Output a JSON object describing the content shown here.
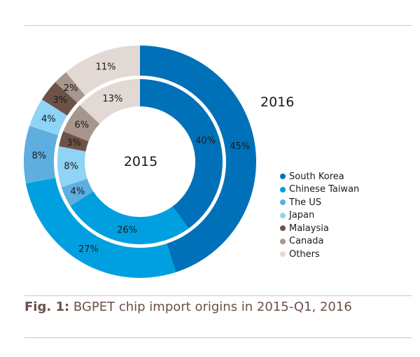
{
  "chart_data": {
    "type": "pie",
    "variant": "nested-donut",
    "title": "BGPET chip import origins in 2015-Q1, 2016",
    "caption_prefix": "Fig. 1:",
    "caption_text": "BGPET chip import origins in 2015-Q1, 2016",
    "categories": [
      "South Korea",
      "Chinese Taiwan",
      "The US",
      "Japan",
      "Malaysia",
      "Canada",
      "Others"
    ],
    "colors": [
      "#0071b9",
      "#00a0e0",
      "#5eaee0",
      "#8fd3f5",
      "#6e5248",
      "#a8958d",
      "#e2d8d4"
    ],
    "series": [
      {
        "name": "2016",
        "ring": "outer",
        "values": [
          45,
          27,
          8,
          4,
          3,
          2,
          11
        ],
        "labels": [
          "45%",
          "27%",
          "8%",
          "4%",
          "3%",
          "2%",
          "11%"
        ]
      },
      {
        "name": "2015",
        "ring": "inner",
        "values": [
          40,
          26,
          4,
          8,
          3,
          6,
          13
        ],
        "labels": [
          "40%",
          "26%",
          "4%",
          "8%",
          "3%",
          "6%",
          "13%"
        ]
      }
    ],
    "ring_labels": {
      "outer": "2016",
      "inner": "2015"
    },
    "legend_position": "right"
  }
}
